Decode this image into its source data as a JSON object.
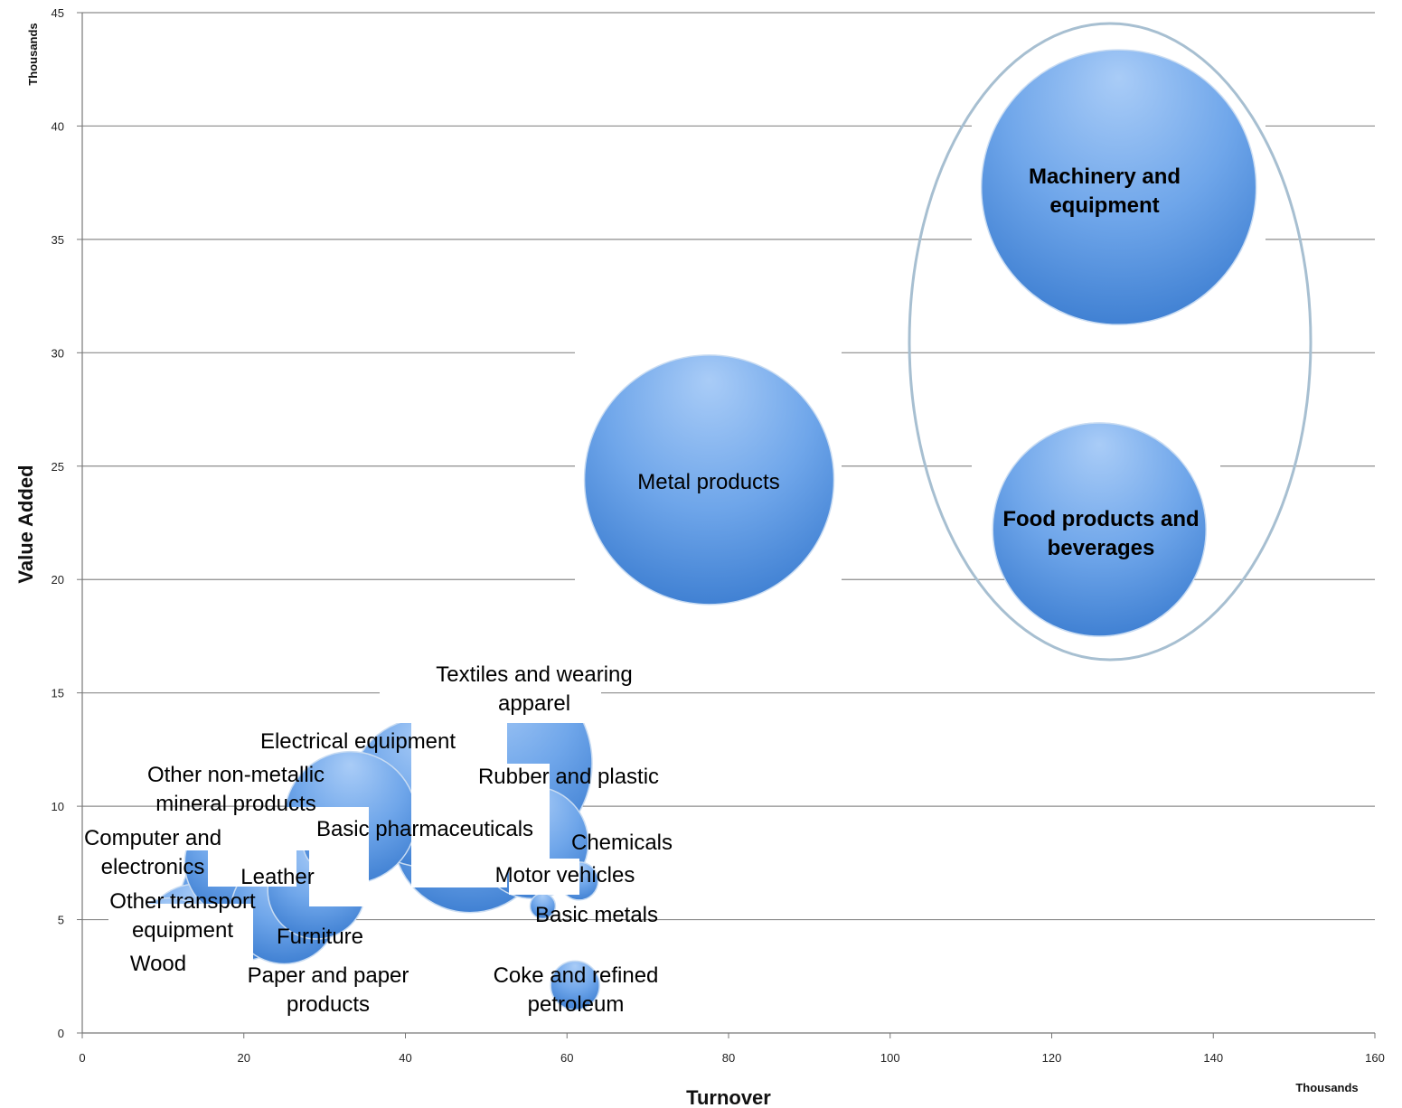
{
  "chart_data": {
    "type": "bubble",
    "title": "",
    "xlabel": "Turnover",
    "ylabel": "Value Added",
    "x_units": "Thousands",
    "y_units": "Thousands",
    "xlim": [
      0,
      160
    ],
    "ylim": [
      0,
      45
    ],
    "x_ticks": [
      0,
      20,
      40,
      60,
      80,
      100,
      120,
      140,
      160
    ],
    "y_ticks": [
      0,
      5,
      10,
      15,
      20,
      25,
      30,
      35,
      40,
      45
    ],
    "grid": "horizontal",
    "highlight": {
      "shape": "ellipse",
      "members": [
        "Machinery and equipment",
        "Food products and beverages"
      ]
    },
    "bubble_color": "#5B9BE0",
    "series": [
      {
        "label": "Machinery and equipment",
        "x": 128.3,
        "y": 37.3,
        "size": 152,
        "bold": true
      },
      {
        "label": "Food products and beverages",
        "x": 125.9,
        "y": 22.2,
        "size": 118,
        "bold": true
      },
      {
        "label": "Metal products",
        "x": 77.6,
        "y": 24.4,
        "size": 138,
        "bold": false
      },
      {
        "label": "Textiles and wearing apparel",
        "x": 50.8,
        "y": 11.9,
        "size": 110,
        "bold": false
      },
      {
        "label": "Electrical equipment",
        "x": 42.3,
        "y": 10.6,
        "size": 82,
        "bold": false
      },
      {
        "label": "Rubber and plastic",
        "x": 48.0,
        "y": 8.7,
        "size": 85,
        "bold": false
      },
      {
        "label": "Other non-metallic mineral products",
        "x": 33.2,
        "y": 9.5,
        "size": 73,
        "bold": false
      },
      {
        "label": "Basic pharmaceuticals",
        "x": 55.7,
        "y": 8.4,
        "size": 62,
        "bold": false
      },
      {
        "label": "Chemicals",
        "x": 61.5,
        "y": 6.7,
        "size": 21,
        "bold": false
      },
      {
        "label": "Motor vehicles",
        "x": 31.0,
        "y": 8.4,
        "size": 33,
        "bold": false
      },
      {
        "label": "Computer and electronics",
        "x": 19.5,
        "y": 7.5,
        "size": 61,
        "bold": false
      },
      {
        "label": "Leather",
        "x": 29.0,
        "y": 6.3,
        "size": 54,
        "bold": false
      },
      {
        "label": "Furniture",
        "x": 25.0,
        "y": 5.4,
        "size": 59,
        "bold": false
      },
      {
        "label": "Other transport equipment",
        "x": 19.5,
        "y": 5.8,
        "size": 66,
        "bold": false
      },
      {
        "label": "Paper and paper products",
        "x": 14.2,
        "y": 4.1,
        "size": 62,
        "bold": false
      },
      {
        "label": "Wood",
        "x": 10.8,
        "y": 3.8,
        "size": 54,
        "bold": false
      },
      {
        "label": "Basic metals",
        "x": 61.0,
        "y": 2.1,
        "size": 27,
        "bold": false
      },
      {
        "label": "Coke and refined petroleum",
        "x": 57.0,
        "y": 5.6,
        "size": 14,
        "bold": false
      }
    ],
    "labels": {
      "machinery": [
        "Machinery and",
        "equipment"
      ],
      "food": [
        "Food products and",
        "beverages"
      ],
      "metal": [
        "Metal products"
      ],
      "textiles": [
        "Textiles and wearing",
        "apparel"
      ],
      "electrical": [
        "Electrical equipment"
      ],
      "rubber": [
        "Rubber and plastic"
      ],
      "nonmetallic": [
        "Other non-metallic",
        "mineral products"
      ],
      "pharma": [
        "Basic pharmaceuticals"
      ],
      "chemicals": [
        "Chemicals"
      ],
      "computer": [
        "Computer and",
        "electronics"
      ],
      "leather": [
        "Leather"
      ],
      "motor": [
        "Motor vehicles"
      ],
      "transport": [
        "Other transport",
        "equipment"
      ],
      "basicmetals": [
        "Basic metals"
      ],
      "furniture": [
        "Furniture"
      ],
      "wood": [
        "Wood"
      ],
      "coke": [
        "Coke and refined",
        "petroleum"
      ],
      "paper": [
        "Paper and paper",
        "products"
      ]
    }
  }
}
